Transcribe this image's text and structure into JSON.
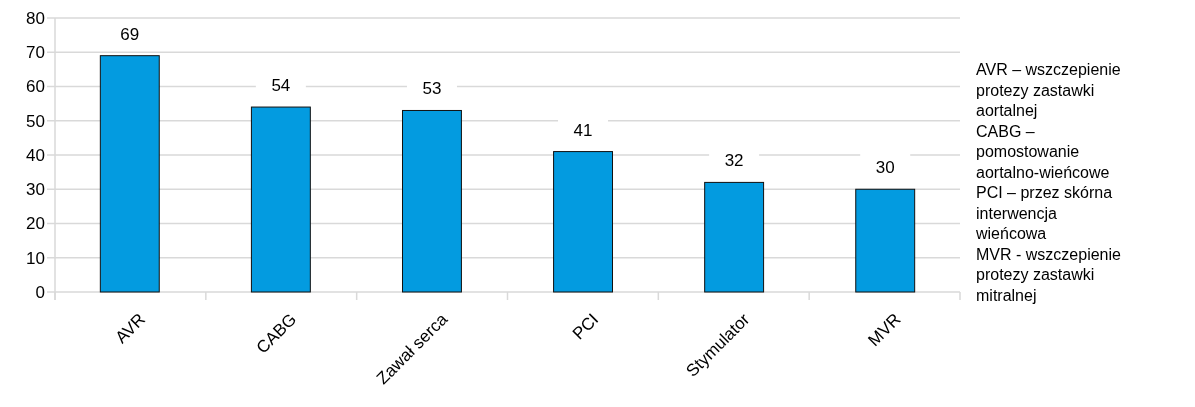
{
  "chart_data": {
    "type": "bar",
    "categories": [
      "AVR",
      "CABG",
      "Zawał serca",
      "PCI",
      "Stymulator",
      "MVR"
    ],
    "values": [
      69,
      54,
      53,
      41,
      32,
      30
    ],
    "color": "#039be0",
    "ylim": [
      0,
      80
    ],
    "yticks": [
      0,
      10,
      20,
      30,
      40,
      50,
      60,
      70,
      80
    ],
    "grid": "y",
    "data_labels": true,
    "annotations": [
      "AVR – wszczepienie protezy zastawki aortalnej",
      "CABG – pomostowanie aortalno-wieńcowe",
      "PCI – przez skórna interwencja wieńcowa",
      "MVR - wszczepienie protezy zastawki mitralnej"
    ]
  }
}
